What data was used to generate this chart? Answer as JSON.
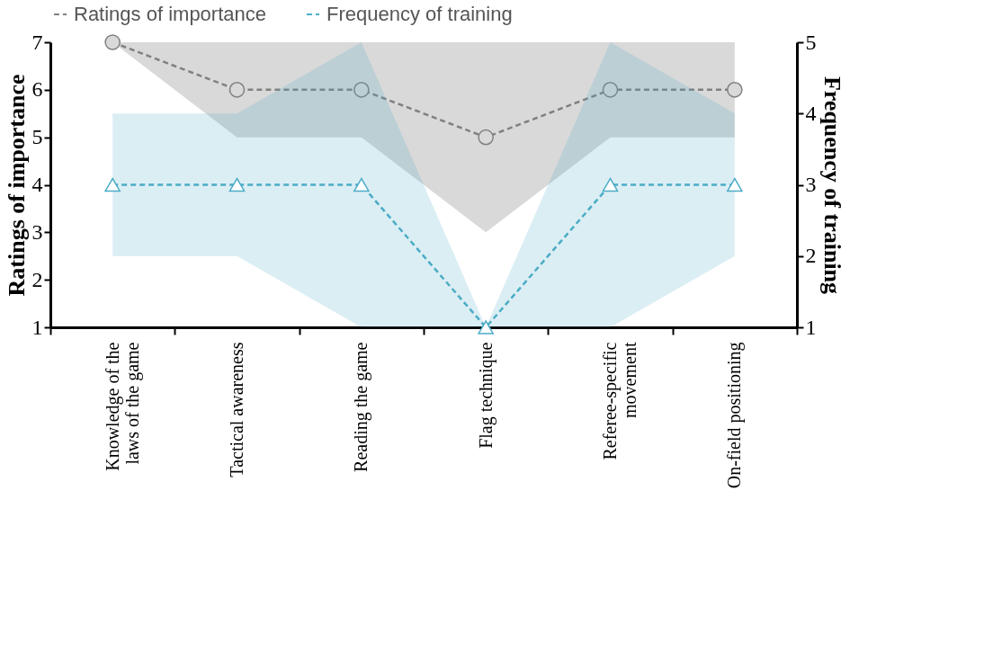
{
  "chart_data": {
    "type": "line",
    "categories": [
      "Knowledge of the laws of the game",
      "Tactical awareness",
      "Reading the game",
      "Flag technique",
      "Referee-specific movement",
      "On-field positioning"
    ],
    "series": [
      {
        "name": "Ratings of importance",
        "color": "#808080",
        "values": [
          7,
          6,
          6,
          5,
          6,
          6
        ],
        "lower": [
          7,
          5,
          5,
          3,
          5,
          5
        ],
        "upper": [
          7,
          7,
          7,
          7,
          7,
          7
        ],
        "marker": "circle"
      },
      {
        "name": "Frequency of training",
        "color": "#4bacc6",
        "values": [
          3,
          3,
          3,
          1,
          3,
          3
        ],
        "lower": [
          2,
          2,
          1,
          1,
          1,
          2
        ],
        "upper": [
          4,
          4,
          5,
          1,
          5,
          4
        ],
        "marker": "triangle",
        "axis": "y2"
      }
    ],
    "ylabel": "Ratings of importance",
    "y2label": "Frequency of training",
    "ylim": [
      1,
      7
    ],
    "yticks": [
      1,
      2,
      3,
      4,
      5,
      6,
      7
    ],
    "y2lim": [
      1,
      5
    ],
    "y2ticks": [
      1,
      2,
      3,
      4,
      5
    ],
    "line_style": "dashed",
    "grid": false,
    "legend": "top"
  }
}
